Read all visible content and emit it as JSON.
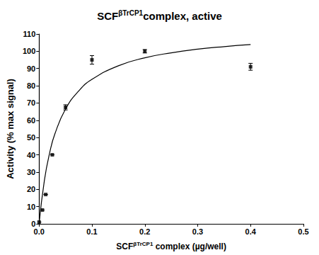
{
  "chart_data": {
    "type": "scatter",
    "title": "SCFβTrCP1complex, active",
    "superscript": "βTrCP1",
    "x_label": "SCFβTrCP1 complex (µg/well)",
    "y_label": "Activity (% max signal)",
    "color": "#000000",
    "grid": false,
    "xlim": [
      0,
      0.5
    ],
    "ylim": [
      0,
      110
    ],
    "xticks": [
      {
        "value": 0,
        "label": "0.0"
      },
      0.1,
      0.2,
      0.3,
      0.4,
      0.5
    ],
    "yticks": [
      0,
      10,
      20,
      30,
      40,
      50,
      60,
      70,
      80,
      90,
      100,
      110
    ],
    "series": [
      {
        "type": "scatter",
        "marker": "square",
        "x": [
          0,
          0.00625,
          0.0125,
          0.025,
          0.05,
          0.1,
          0.2,
          0.4
        ],
        "values": [
          1,
          8,
          17,
          40,
          67.5,
          95,
          100,
          91
        ],
        "errors": [
          0,
          0,
          0,
          0,
          1.5,
          2.5,
          1,
          2
        ]
      },
      {
        "type": "line",
        "line_style": "solid",
        "x": [
          0,
          0.01,
          0.02,
          0.03,
          0.05,
          0.075,
          0.1,
          0.15,
          0.2,
          0.25,
          0.3,
          0.35,
          0.4
        ],
        "values": [
          0,
          25.1,
          41.1,
          52.2,
          66.5,
          77.0,
          83.7,
          91.6,
          96.2,
          99.1,
          101.2,
          102.7,
          103.9
        ]
      }
    ]
  }
}
